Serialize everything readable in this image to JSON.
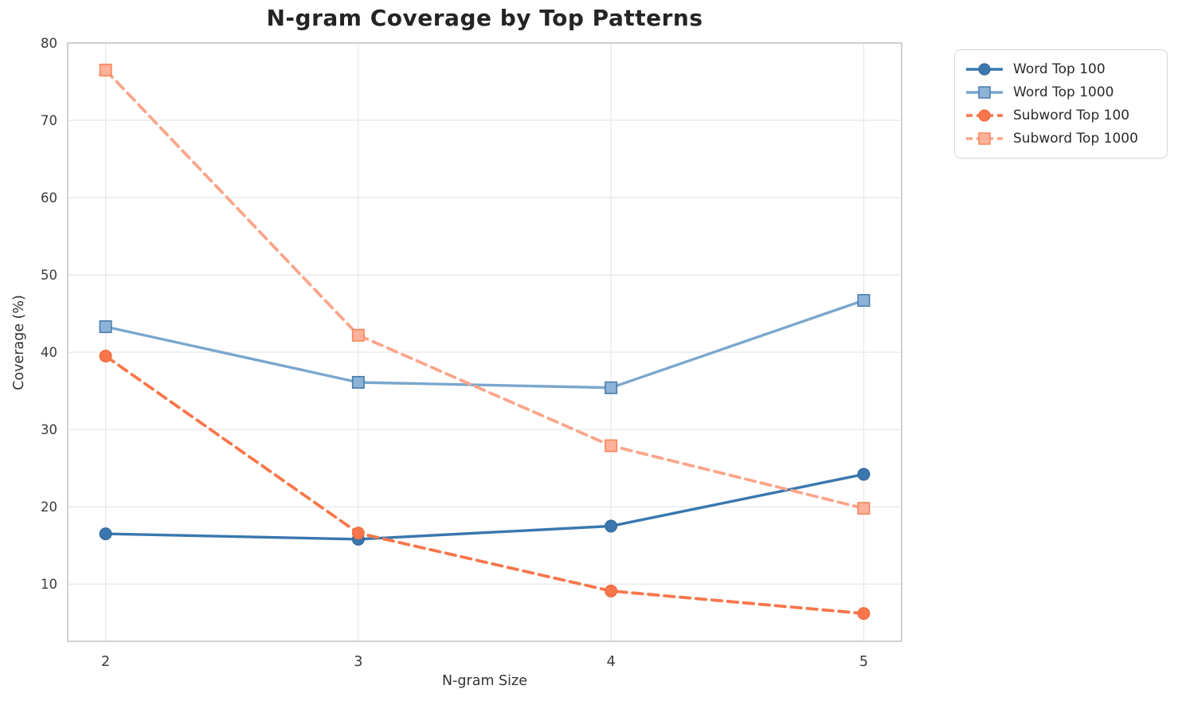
{
  "chart_data": {
    "type": "line",
    "title": "N-gram Coverage by Top Patterns",
    "xlabel": "N-gram Size",
    "ylabel": "Coverage (%)",
    "x": [
      2,
      3,
      4,
      5
    ],
    "series": [
      {
        "name": "Word Top 100",
        "values": [
          16.5,
          15.8,
          17.5,
          24.2
        ],
        "color": "#3a77ae",
        "marker_fill": "#3a77ae",
        "marker_edge": "#34699a",
        "line": "solid",
        "marker": "circle"
      },
      {
        "name": "Word Top 1000",
        "values": [
          43.3,
          36.1,
          35.4,
          46.7
        ],
        "color": "#7ba6cd",
        "marker_fill": "#8db3d8",
        "marker_edge": "#4a7cab",
        "line": "solid",
        "marker": "square"
      },
      {
        "name": "Subword Top 100",
        "values": [
          39.5,
          16.6,
          9.1,
          6.2
        ],
        "color": "#f8764b",
        "marker_fill": "#f8764b",
        "marker_edge": "#ef6a3e",
        "line": "dashed",
        "marker": "circle"
      },
      {
        "name": "Subword Top 1000",
        "values": [
          76.5,
          42.2,
          27.9,
          19.8
        ],
        "color": "#fba58a",
        "marker_fill": "#fcb198",
        "marker_edge": "#f8865e",
        "line": "dashed",
        "marker": "square"
      }
    ],
    "xticks": [
      "2",
      "3",
      "4",
      "5"
    ],
    "yticks": [
      "10",
      "20",
      "30",
      "40",
      "50",
      "60",
      "70",
      "80"
    ],
    "xlim": [
      1.85,
      5.15
    ],
    "ylim": [
      2.6,
      80.0
    ],
    "grid": true,
    "legend_position": "outside-top-right",
    "style": {
      "grid_color": "#e8e8e8",
      "spine_color": "#c6c6c6",
      "tick_text_color": "#3b3b3b",
      "background": "#ffffff"
    }
  }
}
